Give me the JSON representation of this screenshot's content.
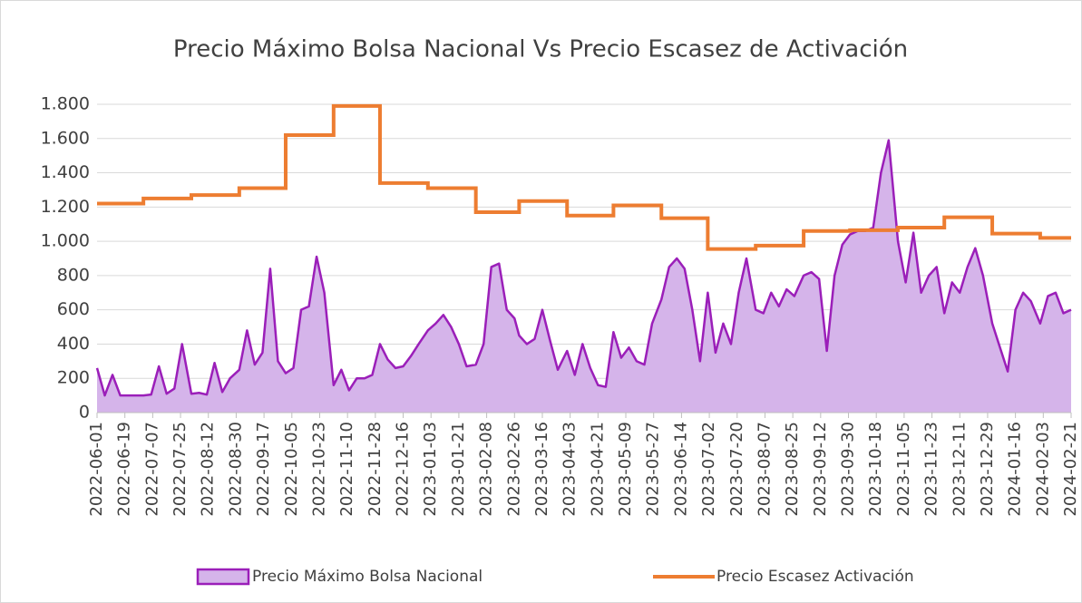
{
  "chart_data": {
    "type": "line",
    "title": "Precio Máximo Bolsa Nacional Vs Precio Escasez de Activación",
    "xlim": [
      "2022-06-01",
      "2024-02-21"
    ],
    "xticks": [
      "2022-06-01",
      "2022-06-19",
      "2022-07-07",
      "2022-07-25",
      "2022-08-12",
      "2022-08-30",
      "2022-09-17",
      "2022-10-05",
      "2022-10-23",
      "2022-11-10",
      "2022-11-28",
      "2022-12-16",
      "2023-01-03",
      "2023-01-21",
      "2023-02-08",
      "2023-02-26",
      "2023-03-16",
      "2023-04-03",
      "2023-04-21",
      "2023-05-09",
      "2023-05-27",
      "2023-06-14",
      "2023-07-02",
      "2023-07-20",
      "2023-08-07",
      "2023-08-25",
      "2023-09-12",
      "2023-09-30",
      "2023-10-18",
      "2023-11-05",
      "2023-11-23",
      "2023-12-11",
      "2023-12-29",
      "2024-01-16",
      "2024-02-03",
      "2024-02-21"
    ],
    "ylim": [
      0,
      1800
    ],
    "yticks": [
      0,
      200,
      400,
      600,
      800,
      {
        "value": 1000,
        "label": "1.000"
      },
      {
        "value": 1200,
        "label": "1.200"
      },
      {
        "value": 1400,
        "label": "1.400"
      },
      {
        "value": 1600,
        "label": "1.600"
      },
      {
        "value": 1800,
        "label": "1.800"
      }
    ],
    "grid": true,
    "legend": "bottom",
    "series": [
      {
        "name": "Precio Máximo Bolsa Nacional",
        "style": "area",
        "color": "#9b1fb9",
        "fill": "#d5b4ea",
        "x": [
          "2022-06-01",
          "2022-06-06",
          "2022-06-11",
          "2022-06-16",
          "2022-06-21",
          "2022-06-26",
          "2022-07-01",
          "2022-07-06",
          "2022-07-11",
          "2022-07-16",
          "2022-07-21",
          "2022-07-26",
          "2022-08-01",
          "2022-08-06",
          "2022-08-11",
          "2022-08-16",
          "2022-08-21",
          "2022-08-26",
          "2022-09-01",
          "2022-09-06",
          "2022-09-11",
          "2022-09-16",
          "2022-09-21",
          "2022-09-26",
          "2022-10-01",
          "2022-10-06",
          "2022-10-11",
          "2022-10-16",
          "2022-10-21",
          "2022-10-26",
          "2022-11-01",
          "2022-11-06",
          "2022-11-11",
          "2022-11-16",
          "2022-11-21",
          "2022-11-26",
          "2022-12-01",
          "2022-12-06",
          "2022-12-11",
          "2022-12-16",
          "2022-12-21",
          "2022-12-26",
          "2023-01-01",
          "2023-01-06",
          "2023-01-11",
          "2023-01-16",
          "2023-01-21",
          "2023-01-26",
          "2023-02-01",
          "2023-02-06",
          "2023-02-11",
          "2023-02-16",
          "2023-02-21",
          "2023-02-26",
          "2023-03-01",
          "2023-03-06",
          "2023-03-11",
          "2023-03-16",
          "2023-03-21",
          "2023-03-26",
          "2023-04-01",
          "2023-04-06",
          "2023-04-11",
          "2023-04-16",
          "2023-04-21",
          "2023-04-26",
          "2023-05-01",
          "2023-05-06",
          "2023-05-11",
          "2023-05-16",
          "2023-05-21",
          "2023-05-26",
          "2023-06-01",
          "2023-06-06",
          "2023-06-11",
          "2023-06-16",
          "2023-06-21",
          "2023-06-26",
          "2023-07-01",
          "2023-07-06",
          "2023-07-11",
          "2023-07-16",
          "2023-07-21",
          "2023-07-26",
          "2023-08-01",
          "2023-08-06",
          "2023-08-11",
          "2023-08-16",
          "2023-08-21",
          "2023-08-26",
          "2023-09-01",
          "2023-09-06",
          "2023-09-11",
          "2023-09-16",
          "2023-09-21",
          "2023-09-26",
          "2023-10-01",
          "2023-10-06",
          "2023-10-11",
          "2023-10-16",
          "2023-10-21",
          "2023-10-26",
          "2023-11-01",
          "2023-11-06",
          "2023-11-11",
          "2023-11-16",
          "2023-11-21",
          "2023-11-26",
          "2023-12-01",
          "2023-12-06",
          "2023-12-11",
          "2023-12-16",
          "2023-12-21",
          "2023-12-26",
          "2024-01-01",
          "2024-01-06",
          "2024-01-11",
          "2024-01-16",
          "2024-01-21",
          "2024-01-26",
          "2024-02-01",
          "2024-02-06",
          "2024-02-11",
          "2024-02-16",
          "2024-02-21"
        ],
        "values": [
          260,
          100,
          220,
          100,
          100,
          100,
          100,
          105,
          270,
          110,
          140,
          400,
          110,
          115,
          105,
          290,
          120,
          200,
          250,
          480,
          280,
          350,
          840,
          300,
          230,
          260,
          600,
          620,
          910,
          700,
          160,
          250,
          130,
          200,
          200,
          220,
          400,
          310,
          260,
          270,
          330,
          400,
          480,
          520,
          570,
          500,
          400,
          270,
          280,
          400,
          850,
          870,
          600,
          550,
          450,
          400,
          430,
          600,
          420,
          250,
          360,
          220,
          400,
          260,
          160,
          150,
          470,
          320,
          380,
          300,
          280,
          520,
          660,
          850,
          900,
          840,
          600,
          300,
          700,
          350,
          520,
          400,
          700,
          900,
          600,
          580,
          700,
          620,
          720,
          680,
          800,
          820,
          780,
          360,
          800,
          980,
          1040,
          1060,
          1060,
          1080,
          1400,
          1590,
          1000,
          760,
          1050,
          700,
          800,
          850,
          580,
          760,
          700,
          850,
          960,
          800,
          520,
          380,
          240,
          600,
          700,
          650,
          520,
          680,
          700,
          580,
          600
        ]
      },
      {
        "name": "Precio Escasez Activación",
        "style": "step",
        "color": "#ed7d31",
        "x": [
          "2022-06-01",
          "2022-07-01",
          "2022-08-01",
          "2022-09-01",
          "2022-10-01",
          "2022-11-01",
          "2022-12-01",
          "2023-01-01",
          "2023-02-01",
          "2023-03-01",
          "2023-04-01",
          "2023-05-01",
          "2023-06-01",
          "2023-07-01",
          "2023-08-01",
          "2023-09-01",
          "2023-10-01",
          "2023-11-01",
          "2023-12-01",
          "2024-01-01",
          "2024-02-01",
          "2024-02-21"
        ],
        "values": [
          1220,
          1250,
          1270,
          1310,
          1620,
          1790,
          1340,
          1310,
          1170,
          1235,
          1150,
          1210,
          1135,
          955,
          975,
          1060,
          1065,
          1080,
          1140,
          1045,
          1020,
          1020
        ]
      }
    ]
  }
}
